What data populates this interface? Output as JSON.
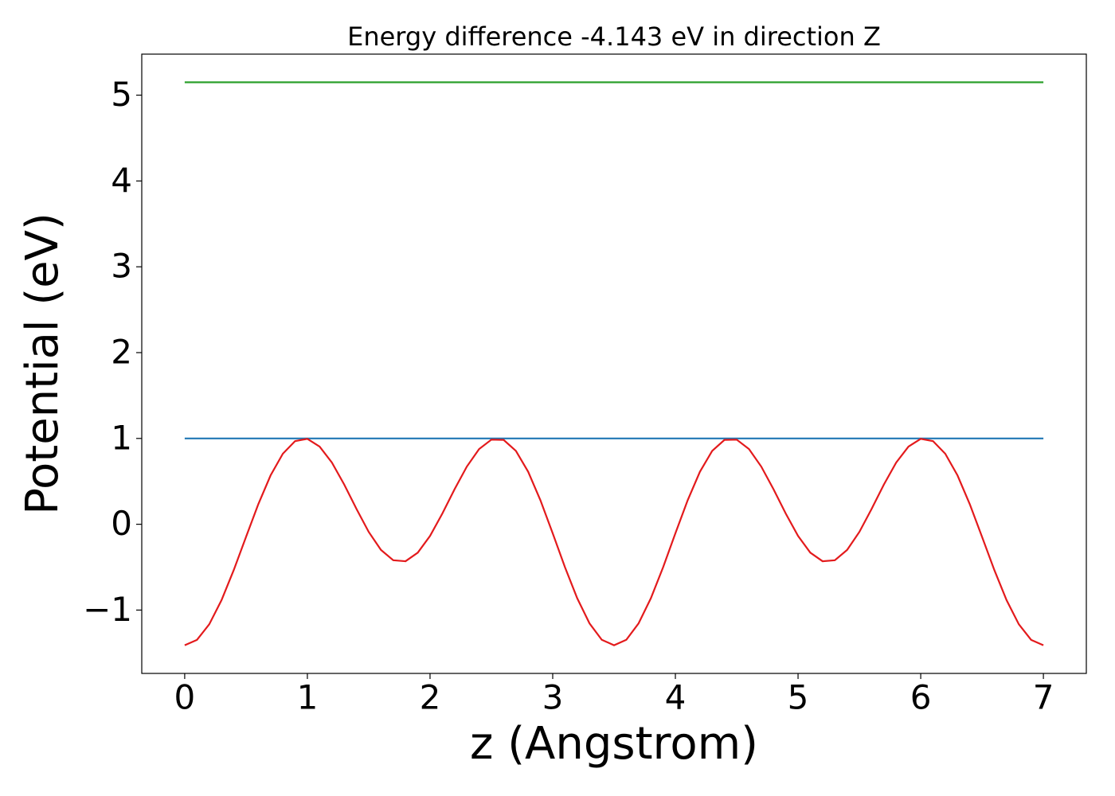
{
  "chart_data": {
    "type": "line",
    "title": "Energy difference -4.143 eV in direction Z",
    "xlabel": "z (Angstrom)",
    "ylabel": "Potential (eV)",
    "xlim": [
      -0.35,
      7.35
    ],
    "ylim": [
      -1.738,
      5.478
    ],
    "xticks": [
      0,
      1,
      2,
      3,
      4,
      5,
      6,
      7
    ],
    "yticks": [
      {
        "value": -1,
        "label": "−1"
      },
      0,
      1,
      2,
      3,
      4,
      5
    ],
    "series": [
      {
        "color": "#2ca02c",
        "x": [
          0,
          7
        ],
        "values": [
          5.15,
          5.15
        ]
      },
      {
        "color": "#1f77b4",
        "x": [
          0,
          7
        ],
        "values": [
          1.0,
          1.0
        ]
      },
      {
        "color": "#e31a1c",
        "x": [
          0,
          0.1,
          0.2,
          0.3,
          0.4,
          0.5,
          0.6,
          0.7,
          0.8,
          0.9,
          1.0,
          1.1,
          1.2,
          1.3,
          1.4,
          1.5,
          1.6,
          1.7,
          1.8,
          1.9,
          2.0,
          2.1,
          2.2,
          2.3,
          2.4,
          2.5,
          2.6,
          2.7,
          2.8,
          2.9,
          3.0,
          3.1,
          3.2,
          3.3,
          3.4,
          3.5,
          3.6,
          3.7,
          3.8,
          3.9,
          4.0,
          4.1,
          4.2,
          4.3,
          4.4,
          4.5,
          4.6,
          4.7,
          4.8,
          4.9,
          5.0,
          5.1,
          5.2,
          5.3,
          5.4,
          5.5,
          5.6,
          5.7,
          5.8,
          5.9,
          6.0,
          6.1,
          6.2,
          6.3,
          6.4,
          6.5,
          6.6,
          6.7,
          6.8,
          6.9,
          7.0
        ],
        "values": [
          -1.41,
          -1.347,
          -1.166,
          -0.885,
          -0.533,
          -0.147,
          0.234,
          0.569,
          0.822,
          0.969,
          0.995,
          0.905,
          0.719,
          0.464,
          0.18,
          -0.089,
          -0.299,
          -0.419,
          -0.431,
          -0.331,
          -0.136,
          0.124,
          0.408,
          0.672,
          0.876,
          0.986,
          0.983,
          0.855,
          0.612,
          0.279,
          -0.106,
          -0.501,
          -0.863,
          -1.155,
          -1.346,
          -1.41,
          -1.346,
          -1.155,
          -0.863,
          -0.501,
          -0.106,
          0.279,
          0.612,
          0.855,
          0.983,
          0.986,
          0.876,
          0.672,
          0.408,
          0.124,
          -0.136,
          -0.331,
          -0.431,
          -0.419,
          -0.299,
          -0.089,
          0.18,
          0.464,
          0.719,
          0.905,
          0.995,
          0.969,
          0.822,
          0.569,
          0.234,
          -0.147,
          -0.533,
          -0.885,
          -1.166,
          -1.347,
          -1.41
        ]
      }
    ]
  }
}
